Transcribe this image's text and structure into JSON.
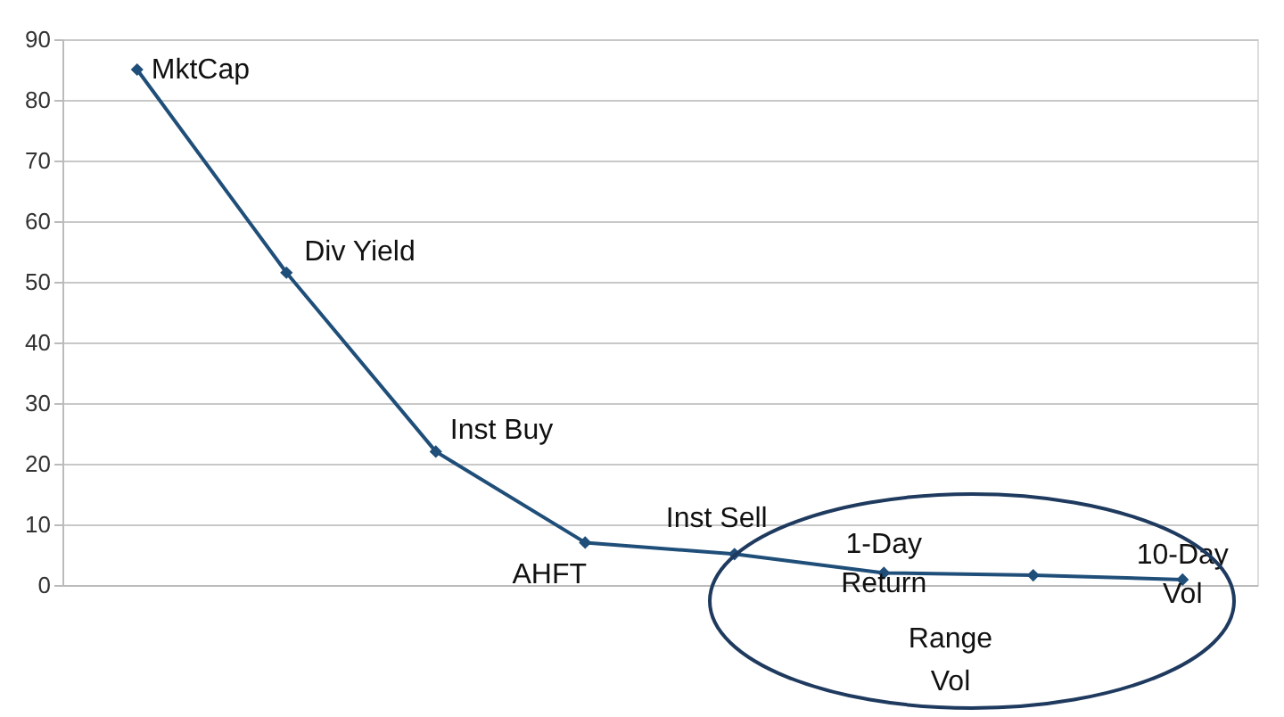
{
  "chart_data": {
    "type": "line",
    "categories": [
      null,
      null,
      null,
      null,
      null,
      null,
      null,
      null
    ],
    "series": [
      {
        "color": "#1f4e79",
        "values": [
          85,
          51.5,
          22,
          7,
          5.1,
          2,
          1.6,
          0.9
        ]
      }
    ],
    "annotations": [
      "MktCap",
      "Div Yield",
      "Inst Buy",
      "AHFT",
      "Inst Sell",
      "1-Day\nReturn",
      "10-Day\nVol",
      "Range\nVol"
    ],
    "ylim": [
      0,
      90
    ],
    "yticks": [
      0,
      10,
      20,
      30,
      40,
      50,
      60,
      70,
      80,
      90
    ],
    "grid": "y",
    "marker": "diamond",
    "line_style": "solid",
    "tick_labels": "y"
  }
}
